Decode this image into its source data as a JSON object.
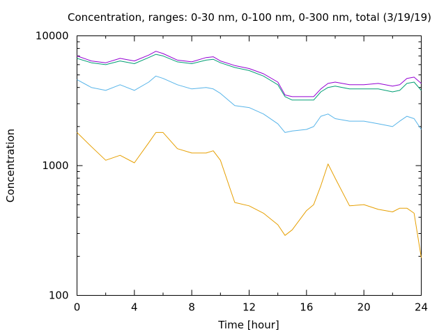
{
  "chart_data": {
    "type": "line",
    "title": "Concentration, ranges: 0-30 nm, 0-100 nm, 0-300 nm, total (3/19/19)",
    "xlabel": "Time [hour]",
    "ylabel": "Concentration",
    "xlim": [
      0,
      24
    ],
    "ylim": [
      100,
      10000
    ],
    "yscale": "log",
    "grid": false,
    "legend": "none",
    "x_ticks": [
      "0",
      "4",
      "8",
      "12",
      "16",
      "20",
      "24"
    ],
    "y_ticks": [
      "100",
      "1000",
      "10000"
    ],
    "x_tick_values": [
      0,
      4,
      8,
      12,
      16,
      20,
      24
    ],
    "y_tick_values": [
      100,
      1000,
      10000
    ],
    "x": [
      0,
      1,
      2,
      3,
      4,
      5,
      5.5,
      6,
      7,
      8,
      9,
      9.5,
      10,
      11,
      12,
      13,
      14,
      14.5,
      15,
      16,
      16.5,
      17,
      17.5,
      18,
      19,
      20,
      21,
      22,
      22.5,
      23,
      23.5,
      24
    ],
    "series": [
      {
        "color": "#e69f00",
        "values": [
          1800,
          1400,
          1100,
          1200,
          1050,
          1500,
          1800,
          1800,
          1350,
          1250,
          1250,
          1300,
          1100,
          520,
          490,
          430,
          350,
          290,
          320,
          450,
          500,
          700,
          1030,
          800,
          490,
          500,
          460,
          440,
          470,
          470,
          430,
          195
        ]
      },
      {
        "color": "#56b4e9",
        "values": [
          4600,
          4000,
          3800,
          4200,
          3800,
          4400,
          4900,
          4700,
          4200,
          3900,
          4000,
          3900,
          3600,
          2900,
          2800,
          2500,
          2100,
          1800,
          1850,
          1900,
          2000,
          2400,
          2500,
          2300,
          2200,
          2200,
          2100,
          2000,
          2200,
          2400,
          2300,
          1900
        ]
      },
      {
        "color": "#009e73",
        "values": [
          6700,
          6200,
          6000,
          6400,
          6100,
          6800,
          7200,
          7000,
          6300,
          6100,
          6500,
          6600,
          6200,
          5700,
          5400,
          4900,
          4200,
          3400,
          3200,
          3200,
          3200,
          3700,
          4000,
          4100,
          3900,
          3900,
          3900,
          3700,
          3800,
          4300,
          4400,
          3800
        ]
      },
      {
        "color": "#9400d3",
        "values": [
          7000,
          6400,
          6200,
          6700,
          6400,
          7100,
          7600,
          7300,
          6500,
          6300,
          6800,
          6900,
          6400,
          5900,
          5600,
          5100,
          4400,
          3500,
          3400,
          3400,
          3400,
          3900,
          4300,
          4400,
          4200,
          4200,
          4300,
          4100,
          4200,
          4700,
          4800,
          4300
        ]
      }
    ]
  }
}
